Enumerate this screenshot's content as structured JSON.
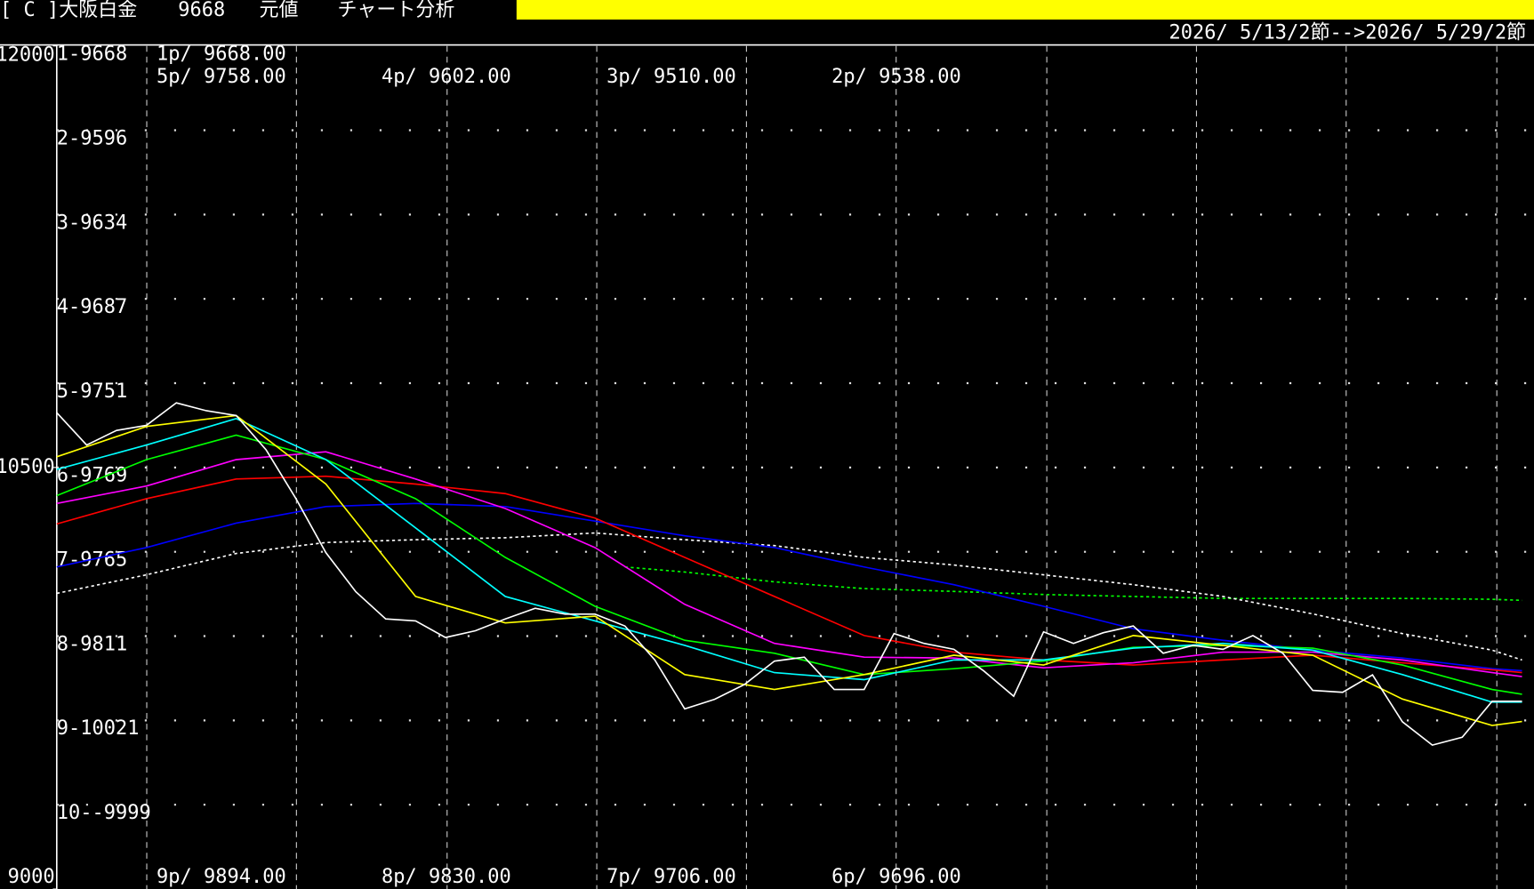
{
  "header": {
    "symbol": "[ C ]大阪白金",
    "code": "9668",
    "mode": "元値",
    "menu": "チャート分析"
  },
  "chart_data": {
    "type": "line",
    "date_range": "2026/ 5/13/2節-->2026/ 5/29/2節",
    "ylim": [
      9000,
      12000
    ],
    "yticks": [
      12000,
      10500,
      9000
    ],
    "xlim": [
      0,
      49.4
    ],
    "row_labels": [
      "1-9668",
      "2-9596",
      "3-9634",
      "4-9687",
      "5-9751",
      "6-9769",
      "7-9765",
      "8-9811",
      "9-10021",
      "10--9999"
    ],
    "annotations_top": [
      [
        "1p/ 9668.00"
      ],
      [
        "5p/ 9758.00",
        "4p/ 9602.00",
        "3p/ 9510.00",
        "2p/ 9538.00"
      ]
    ],
    "annotations_bottom": [
      "9p/ 9894.00",
      "8p/ 9830.00",
      "7p/ 9706.00",
      "6p/ 9696.00"
    ],
    "series": [
      {
        "color": "#ffffff",
        "style": "solid",
        "x": [
          0,
          1,
          2,
          3,
          4,
          5,
          6,
          7,
          8,
          9,
          10,
          11,
          12,
          13,
          14,
          15,
          16,
          17,
          18,
          19,
          20,
          21,
          22,
          23,
          24,
          25,
          26,
          27,
          28,
          29,
          30,
          31,
          32,
          33,
          34,
          35,
          36,
          37,
          38,
          39,
          40,
          41,
          42,
          43,
          44,
          45,
          46,
          47,
          48,
          49
        ],
        "values": [
          10695,
          10580,
          10632,
          10650,
          10730,
          10702,
          10685,
          10563,
          10389,
          10197,
          10058,
          9961,
          9954,
          9895,
          9919,
          9961,
          9999,
          9978,
          9978,
          9936,
          9815,
          9641,
          9675,
          9728,
          9811,
          9825,
          9710,
          9710,
          9909,
          9874,
          9853,
          9776,
          9686,
          9915,
          9874,
          9912,
          9936,
          9839,
          9867,
          9853,
          9902,
          9839,
          9707,
          9700,
          9762,
          9595,
          9512,
          9540,
          9668,
          9668
        ]
      },
      {
        "color": "#ffff00",
        "style": "solid",
        "x": [
          0,
          3,
          6,
          9,
          12,
          15,
          18,
          21,
          24,
          27,
          30,
          33,
          36,
          39,
          42,
          45,
          48,
          49
        ],
        "values": [
          10538,
          10646,
          10685,
          10441,
          10041,
          9947,
          9971,
          9763,
          9710,
          9763,
          9832,
          9797,
          9902,
          9867,
          9832,
          9676,
          9582,
          9596
        ]
      },
      {
        "color": "#00ffff",
        "style": "solid",
        "x": [
          0,
          3,
          6,
          9,
          12,
          15,
          18,
          21,
          24,
          27,
          30,
          33,
          36,
          39,
          42,
          45,
          48,
          49
        ],
        "values": [
          10493,
          10580,
          10674,
          10528,
          10285,
          10041,
          9954,
          9867,
          9770,
          9745,
          9815,
          9815,
          9857,
          9874,
          9850,
          9763,
          9665,
          9665
        ]
      },
      {
        "color": "#00ff00",
        "style": "solid",
        "x": [
          0,
          3,
          6,
          9,
          12,
          15,
          18,
          21,
          24,
          27,
          30,
          33,
          36,
          39,
          42,
          45,
          48,
          49
        ],
        "values": [
          10400,
          10528,
          10615,
          10528,
          10389,
          10180,
          10006,
          9885,
          9839,
          9763,
          9784,
          9811,
          9860,
          9867,
          9857,
          9797,
          9710,
          9693
        ]
      },
      {
        "color": "#ff00ff",
        "style": "solid",
        "x": [
          0,
          3,
          6,
          9,
          12,
          15,
          18,
          21,
          24,
          27,
          30,
          33,
          36,
          39,
          42,
          45,
          48,
          49
        ],
        "values": [
          10372,
          10434,
          10528,
          10556,
          10459,
          10354,
          10215,
          10013,
          9874,
          9825,
          9822,
          9787,
          9805,
          9843,
          9843,
          9815,
          9770,
          9756
        ]
      },
      {
        "color": "#ff0000",
        "style": "solid",
        "x": [
          0,
          3,
          6,
          9,
          12,
          15,
          18,
          21,
          24,
          27,
          30,
          33,
          36,
          39,
          42,
          45,
          48,
          49
        ],
        "values": [
          10299,
          10389,
          10459,
          10469,
          10441,
          10407,
          10320,
          10180,
          10041,
          9902,
          9843,
          9815,
          9797,
          9815,
          9832,
          9805,
          9780,
          9770
        ]
      },
      {
        "color": "#0000ff",
        "style": "solid",
        "x": [
          0,
          3,
          6,
          9,
          12,
          15,
          18,
          21,
          24,
          27,
          30,
          33,
          36,
          39,
          42,
          45,
          48,
          49
        ],
        "values": [
          10146,
          10215,
          10302,
          10361,
          10372,
          10361,
          10309,
          10257,
          10215,
          10146,
          10083,
          10006,
          9926,
          9885,
          9850,
          9822,
          9784,
          9777
        ]
      },
      {
        "color": "#ffffff",
        "style": "dotted",
        "x": [
          0,
          3,
          6,
          9,
          12,
          15,
          18,
          21,
          24,
          27,
          30,
          33,
          36,
          39,
          42,
          45,
          48,
          49
        ],
        "values": [
          10052,
          10118,
          10194,
          10233,
          10243,
          10250,
          10267,
          10243,
          10222,
          10180,
          10153,
          10118,
          10083,
          10041,
          9979,
          9909,
          9850,
          9815
        ]
      },
      {
        "color": "#00ff00",
        "style": "dotted",
        "x": [
          19,
          21,
          24,
          27,
          30,
          33,
          36,
          39,
          42,
          45,
          48,
          49
        ],
        "values": [
          10146,
          10128,
          10093,
          10069,
          10059,
          10048,
          10041,
          10034,
          10034,
          10034,
          10031,
          10027
        ]
      }
    ]
  }
}
